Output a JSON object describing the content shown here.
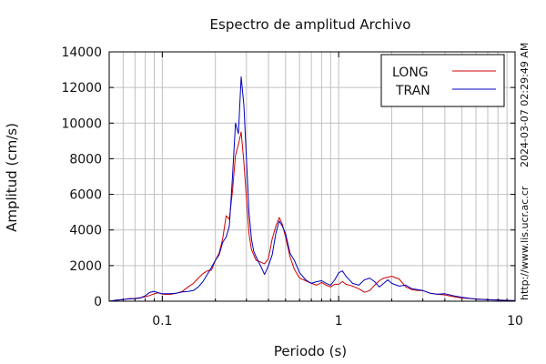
{
  "chart_data": {
    "type": "line",
    "title": "Espectro de amplitud Archivo",
    "xlabel": "Periodo (s)",
    "ylabel": "Amplitud (cm/s)",
    "x_scale": "log",
    "xlim": [
      0.05,
      10
    ],
    "ylim": [
      0,
      14000
    ],
    "grid": true,
    "legend_position": "top-right",
    "x_ticks": [
      {
        "value": 0.1,
        "label": "0.1"
      },
      {
        "value": 1,
        "label": "1"
      },
      {
        "value": 10,
        "label": "10"
      }
    ],
    "y_ticks": [
      {
        "value": 0,
        "label": "0"
      },
      {
        "value": 2000,
        "label": "2000"
      },
      {
        "value": 4000,
        "label": "4000"
      },
      {
        "value": 6000,
        "label": "6000"
      },
      {
        "value": 8000,
        "label": "8000"
      },
      {
        "value": 10000,
        "label": "10000"
      },
      {
        "value": 12000,
        "label": "12000"
      },
      {
        "value": 14000,
        "label": "14000"
      }
    ],
    "series": [
      {
        "name": "LONG",
        "color": "#d00000",
        "points": [
          [
            0.05,
            0
          ],
          [
            0.055,
            50
          ],
          [
            0.06,
            90
          ],
          [
            0.065,
            150
          ],
          [
            0.07,
            160
          ],
          [
            0.075,
            200
          ],
          [
            0.08,
            250
          ],
          [
            0.085,
            320
          ],
          [
            0.09,
            420
          ],
          [
            0.095,
            470
          ],
          [
            0.1,
            400
          ],
          [
            0.11,
            380
          ],
          [
            0.12,
            450
          ],
          [
            0.13,
            550
          ],
          [
            0.14,
            800
          ],
          [
            0.15,
            1000
          ],
          [
            0.16,
            1300
          ],
          [
            0.17,
            1550
          ],
          [
            0.18,
            1700
          ],
          [
            0.19,
            1750
          ],
          [
            0.2,
            2300
          ],
          [
            0.21,
            2700
          ],
          [
            0.22,
            3500
          ],
          [
            0.23,
            4800
          ],
          [
            0.24,
            4600
          ],
          [
            0.25,
            6200
          ],
          [
            0.26,
            8200
          ],
          [
            0.27,
            8800
          ],
          [
            0.28,
            9500
          ],
          [
            0.29,
            7800
          ],
          [
            0.3,
            5800
          ],
          [
            0.31,
            3800
          ],
          [
            0.32,
            2900
          ],
          [
            0.34,
            2300
          ],
          [
            0.36,
            2200
          ],
          [
            0.38,
            2100
          ],
          [
            0.4,
            2400
          ],
          [
            0.42,
            3500
          ],
          [
            0.44,
            4200
          ],
          [
            0.46,
            4700
          ],
          [
            0.48,
            4300
          ],
          [
            0.5,
            3600
          ],
          [
            0.53,
            2500
          ],
          [
            0.56,
            1800
          ],
          [
            0.6,
            1300
          ],
          [
            0.65,
            1150
          ],
          [
            0.7,
            1000
          ],
          [
            0.75,
            900
          ],
          [
            0.8,
            1050
          ],
          [
            0.85,
            900
          ],
          [
            0.9,
            800
          ],
          [
            0.95,
            950
          ],
          [
            1.0,
            950
          ],
          [
            1.05,
            1100
          ],
          [
            1.1,
            950
          ],
          [
            1.2,
            850
          ],
          [
            1.3,
            700
          ],
          [
            1.4,
            500
          ],
          [
            1.5,
            600
          ],
          [
            1.6,
            900
          ],
          [
            1.7,
            1150
          ],
          [
            1.8,
            1300
          ],
          [
            1.9,
            1350
          ],
          [
            2.0,
            1400
          ],
          [
            2.2,
            1250
          ],
          [
            2.4,
            800
          ],
          [
            2.6,
            650
          ],
          [
            2.8,
            600
          ],
          [
            3.0,
            600
          ],
          [
            3.3,
            450
          ],
          [
            3.6,
            400
          ],
          [
            4.0,
            350
          ],
          [
            4.5,
            250
          ],
          [
            5.0,
            180
          ],
          [
            6.0,
            130
          ],
          [
            7.0,
            90
          ],
          [
            8.0,
            70
          ],
          [
            9.0,
            50
          ],
          [
            10.0,
            30
          ]
        ]
      },
      {
        "name": "TRAN",
        "color": "#0000c0",
        "points": [
          [
            0.05,
            0
          ],
          [
            0.055,
            60
          ],
          [
            0.06,
            100
          ],
          [
            0.065,
            130
          ],
          [
            0.07,
            140
          ],
          [
            0.075,
            180
          ],
          [
            0.08,
            300
          ],
          [
            0.085,
            500
          ],
          [
            0.09,
            550
          ],
          [
            0.095,
            480
          ],
          [
            0.1,
            420
          ],
          [
            0.11,
            420
          ],
          [
            0.12,
            450
          ],
          [
            0.13,
            520
          ],
          [
            0.14,
            550
          ],
          [
            0.15,
            600
          ],
          [
            0.16,
            800
          ],
          [
            0.17,
            1100
          ],
          [
            0.18,
            1500
          ],
          [
            0.19,
            1900
          ],
          [
            0.2,
            2300
          ],
          [
            0.21,
            2600
          ],
          [
            0.22,
            3300
          ],
          [
            0.23,
            3600
          ],
          [
            0.24,
            4200
          ],
          [
            0.25,
            7000
          ],
          [
            0.26,
            10000
          ],
          [
            0.27,
            9400
          ],
          [
            0.28,
            12600
          ],
          [
            0.29,
            11000
          ],
          [
            0.3,
            8000
          ],
          [
            0.31,
            5000
          ],
          [
            0.32,
            3500
          ],
          [
            0.33,
            2800
          ],
          [
            0.34,
            2500
          ],
          [
            0.36,
            2000
          ],
          [
            0.38,
            1500
          ],
          [
            0.4,
            2000
          ],
          [
            0.42,
            2600
          ],
          [
            0.44,
            3800
          ],
          [
            0.46,
            4500
          ],
          [
            0.48,
            4200
          ],
          [
            0.5,
            3800
          ],
          [
            0.53,
            2700
          ],
          [
            0.56,
            2300
          ],
          [
            0.6,
            1600
          ],
          [
            0.65,
            1200
          ],
          [
            0.7,
            1000
          ],
          [
            0.75,
            1100
          ],
          [
            0.8,
            1150
          ],
          [
            0.85,
            1000
          ],
          [
            0.9,
            900
          ],
          [
            0.95,
            1200
          ],
          [
            1.0,
            1600
          ],
          [
            1.05,
            1700
          ],
          [
            1.1,
            1400
          ],
          [
            1.2,
            1000
          ],
          [
            1.3,
            900
          ],
          [
            1.4,
            1200
          ],
          [
            1.5,
            1300
          ],
          [
            1.6,
            1100
          ],
          [
            1.7,
            800
          ],
          [
            1.8,
            1000
          ],
          [
            1.9,
            1200
          ],
          [
            2.0,
            1000
          ],
          [
            2.2,
            850
          ],
          [
            2.4,
            900
          ],
          [
            2.6,
            700
          ],
          [
            2.8,
            650
          ],
          [
            3.0,
            600
          ],
          [
            3.3,
            450
          ],
          [
            3.6,
            400
          ],
          [
            4.0,
            420
          ],
          [
            4.5,
            300
          ],
          [
            5.0,
            220
          ],
          [
            6.0,
            120
          ],
          [
            7.0,
            80
          ],
          [
            8.0,
            60
          ],
          [
            9.0,
            40
          ],
          [
            10.0,
            30
          ]
        ]
      }
    ]
  },
  "side_text": {
    "timestamp": "2024-03-07 02:29:49 AM",
    "url": "http://www.lis.ucr.ac.cr"
  }
}
